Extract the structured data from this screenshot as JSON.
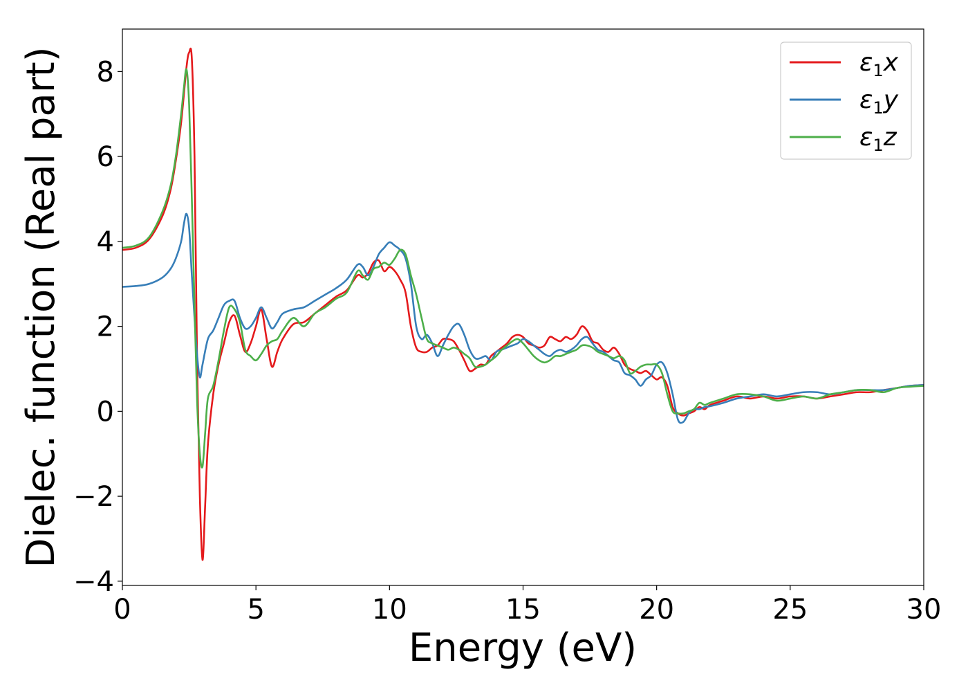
{
  "chart_data": {
    "type": "line",
    "title": "",
    "xlabel": "Energy (eV)",
    "ylabel": "Dielec. function (Real part)",
    "xlim": [
      0,
      30
    ],
    "ylim": [
      -4.1,
      9.0
    ],
    "xticks": [
      0,
      5,
      10,
      15,
      20,
      25,
      30
    ],
    "xtick_labels": [
      "0",
      "5",
      "10",
      "15",
      "20",
      "25",
      "30"
    ],
    "yticks": [
      -4,
      -2,
      0,
      2,
      4,
      6,
      8
    ],
    "ytick_labels": [
      "−4",
      "−2",
      "0",
      "2",
      "4",
      "6",
      "8"
    ],
    "grid": false,
    "legend_position": "top-right",
    "series": [
      {
        "name": "ε1x",
        "legend_base": "ε",
        "legend_sub": "1",
        "legend_var": "x",
        "color": "#e41a1c",
        "x": [
          0.0,
          0.5,
          1.0,
          1.5,
          1.8,
          2.0,
          2.2,
          2.4,
          2.5,
          2.6,
          2.7,
          2.8,
          2.9,
          3.0,
          3.1,
          3.2,
          3.4,
          3.6,
          3.8,
          4.0,
          4.2,
          4.4,
          4.6,
          4.8,
          5.0,
          5.2,
          5.4,
          5.6,
          5.8,
          6.0,
          6.4,
          6.8,
          7.2,
          7.6,
          8.0,
          8.4,
          8.8,
          9.0,
          9.2,
          9.4,
          9.6,
          9.8,
          10.0,
          10.2,
          10.4,
          10.6,
          10.8,
          11.0,
          11.2,
          11.4,
          11.6,
          11.8,
          12.0,
          12.2,
          12.4,
          12.6,
          12.8,
          13.0,
          13.2,
          13.4,
          13.6,
          13.8,
          14.0,
          14.2,
          14.4,
          14.6,
          14.8,
          15.0,
          15.2,
          15.4,
          15.6,
          15.8,
          16.0,
          16.2,
          16.4,
          16.6,
          16.8,
          17.0,
          17.2,
          17.4,
          17.6,
          17.8,
          18.0,
          18.2,
          18.4,
          18.6,
          18.8,
          19.0,
          19.2,
          19.4,
          19.6,
          19.8,
          20.0,
          20.2,
          20.4,
          20.6,
          20.8,
          21.0,
          21.2,
          21.4,
          21.6,
          21.8,
          22.0,
          22.5,
          23.0,
          23.5,
          24.0,
          24.5,
          25.0,
          25.5,
          26.0,
          26.5,
          27.0,
          27.5,
          28.0,
          28.5,
          29.0,
          29.5,
          30.0
        ],
        "y": [
          3.8,
          3.85,
          4.05,
          4.6,
          5.2,
          5.9,
          6.8,
          8.1,
          8.45,
          8.3,
          6.0,
          1.0,
          -2.0,
          -3.5,
          -2.2,
          -0.8,
          0.4,
          1.1,
          1.6,
          2.1,
          2.25,
          1.8,
          1.4,
          1.6,
          2.0,
          2.4,
          1.7,
          1.05,
          1.4,
          1.7,
          2.05,
          2.1,
          2.3,
          2.5,
          2.7,
          2.85,
          3.2,
          3.15,
          3.25,
          3.5,
          3.55,
          3.3,
          3.4,
          3.3,
          3.1,
          2.8,
          2.0,
          1.5,
          1.4,
          1.4,
          1.5,
          1.55,
          1.7,
          1.7,
          1.65,
          1.45,
          1.2,
          0.95,
          1.0,
          1.1,
          1.1,
          1.3,
          1.4,
          1.5,
          1.6,
          1.75,
          1.8,
          1.75,
          1.6,
          1.55,
          1.5,
          1.55,
          1.75,
          1.7,
          1.65,
          1.75,
          1.7,
          1.8,
          2.0,
          1.9,
          1.65,
          1.6,
          1.45,
          1.4,
          1.5,
          1.35,
          1.1,
          1.0,
          0.95,
          0.9,
          0.95,
          0.85,
          0.75,
          0.8,
          0.6,
          0.1,
          -0.05,
          -0.1,
          -0.05,
          0.0,
          0.1,
          0.05,
          0.15,
          0.25,
          0.35,
          0.3,
          0.35,
          0.3,
          0.35,
          0.35,
          0.3,
          0.35,
          0.4,
          0.45,
          0.45,
          0.5,
          0.55,
          0.6,
          0.62
        ]
      },
      {
        "name": "ε1y",
        "legend_base": "ε",
        "legend_sub": "1",
        "legend_var": "y",
        "color": "#377eb8",
        "x": [
          0.0,
          0.5,
          1.0,
          1.5,
          1.8,
          2.0,
          2.2,
          2.3,
          2.4,
          2.5,
          2.6,
          2.7,
          2.8,
          2.9,
          3.0,
          3.2,
          3.4,
          3.6,
          3.8,
          4.0,
          4.2,
          4.4,
          4.6,
          4.8,
          5.0,
          5.2,
          5.4,
          5.6,
          5.8,
          6.0,
          6.4,
          6.8,
          7.2,
          7.6,
          8.0,
          8.4,
          8.8,
          9.0,
          9.2,
          9.4,
          9.6,
          9.8,
          10.0,
          10.2,
          10.4,
          10.6,
          10.8,
          11.0,
          11.2,
          11.4,
          11.6,
          11.8,
          12.0,
          12.2,
          12.4,
          12.6,
          12.8,
          13.0,
          13.2,
          13.4,
          13.6,
          13.8,
          14.0,
          14.2,
          14.4,
          14.6,
          14.8,
          15.0,
          15.2,
          15.4,
          15.6,
          15.8,
          16.0,
          16.2,
          16.4,
          16.6,
          16.8,
          17.0,
          17.2,
          17.4,
          17.6,
          17.8,
          18.0,
          18.2,
          18.4,
          18.6,
          18.8,
          19.0,
          19.2,
          19.4,
          19.6,
          19.8,
          20.0,
          20.2,
          20.4,
          20.6,
          20.8,
          21.0,
          21.2,
          21.4,
          21.6,
          21.8,
          22.0,
          22.5,
          23.0,
          23.5,
          24.0,
          24.5,
          25.0,
          25.5,
          26.0,
          26.5,
          27.0,
          27.5,
          28.0,
          28.5,
          29.0,
          29.5,
          30.0
        ],
        "y": [
          2.93,
          2.95,
          3.0,
          3.15,
          3.35,
          3.6,
          4.0,
          4.4,
          4.65,
          4.3,
          3.2,
          2.2,
          1.3,
          0.8,
          1.1,
          1.7,
          1.9,
          2.2,
          2.5,
          2.6,
          2.6,
          2.2,
          1.95,
          2.0,
          2.2,
          2.45,
          2.2,
          1.95,
          2.1,
          2.3,
          2.4,
          2.45,
          2.6,
          2.75,
          2.9,
          3.1,
          3.45,
          3.4,
          3.2,
          3.4,
          3.7,
          3.85,
          3.98,
          3.9,
          3.8,
          3.6,
          3.0,
          2.0,
          1.7,
          1.8,
          1.6,
          1.3,
          1.55,
          1.8,
          2.0,
          2.05,
          1.8,
          1.45,
          1.25,
          1.25,
          1.3,
          1.2,
          1.4,
          1.45,
          1.5,
          1.55,
          1.6,
          1.7,
          1.65,
          1.55,
          1.45,
          1.35,
          1.3,
          1.4,
          1.45,
          1.4,
          1.45,
          1.55,
          1.7,
          1.75,
          1.6,
          1.45,
          1.4,
          1.3,
          1.2,
          1.15,
          0.9,
          0.85,
          0.75,
          0.6,
          0.75,
          0.85,
          1.1,
          1.15,
          0.9,
          0.4,
          -0.2,
          -0.25,
          -0.05,
          0.05,
          0.05,
          0.1,
          0.12,
          0.2,
          0.3,
          0.35,
          0.4,
          0.35,
          0.4,
          0.45,
          0.45,
          0.4,
          0.45,
          0.5,
          0.5,
          0.5,
          0.55,
          0.6,
          0.62
        ]
      },
      {
        "name": "ε1z",
        "legend_base": "ε",
        "legend_sub": "1",
        "legend_var": "z",
        "color": "#4daf4a",
        "x": [
          0.0,
          0.5,
          1.0,
          1.5,
          1.8,
          2.0,
          2.2,
          2.3,
          2.4,
          2.5,
          2.6,
          2.7,
          2.8,
          2.9,
          3.0,
          3.1,
          3.2,
          3.4,
          3.6,
          3.8,
          4.0,
          4.2,
          4.4,
          4.6,
          4.8,
          5.0,
          5.2,
          5.4,
          5.6,
          5.8,
          6.0,
          6.4,
          6.8,
          7.2,
          7.6,
          8.0,
          8.4,
          8.8,
          9.0,
          9.2,
          9.4,
          9.6,
          9.8,
          10.0,
          10.2,
          10.4,
          10.6,
          10.8,
          11.0,
          11.2,
          11.4,
          11.6,
          11.8,
          12.0,
          12.2,
          12.4,
          12.6,
          12.8,
          13.0,
          13.2,
          13.4,
          13.6,
          13.8,
          14.0,
          14.2,
          14.4,
          14.6,
          14.8,
          15.0,
          15.2,
          15.4,
          15.6,
          15.8,
          16.0,
          16.2,
          16.4,
          16.6,
          16.8,
          17.0,
          17.2,
          17.4,
          17.6,
          17.8,
          18.0,
          18.2,
          18.4,
          18.6,
          18.8,
          19.0,
          19.2,
          19.4,
          19.6,
          19.8,
          20.0,
          20.2,
          20.4,
          20.6,
          20.8,
          21.0,
          21.2,
          21.4,
          21.6,
          21.8,
          22.0,
          22.5,
          23.0,
          23.5,
          24.0,
          24.5,
          25.0,
          25.5,
          26.0,
          26.5,
          27.0,
          27.5,
          28.0,
          28.5,
          29.0,
          29.5,
          30.0
        ],
        "y": [
          3.85,
          3.9,
          4.1,
          4.7,
          5.3,
          6.0,
          7.0,
          7.6,
          8.05,
          7.2,
          5.0,
          2.5,
          0.2,
          -1.0,
          -1.3,
          -0.5,
          0.3,
          0.6,
          1.2,
          1.9,
          2.45,
          2.4,
          2.1,
          1.45,
          1.3,
          1.2,
          1.35,
          1.55,
          1.65,
          1.7,
          1.9,
          2.2,
          2.0,
          2.3,
          2.45,
          2.65,
          2.8,
          3.3,
          3.2,
          3.1,
          3.35,
          3.4,
          3.5,
          3.45,
          3.6,
          3.8,
          3.7,
          3.2,
          2.75,
          2.2,
          1.7,
          1.6,
          1.55,
          1.5,
          1.45,
          1.5,
          1.45,
          1.35,
          1.25,
          1.05,
          1.05,
          1.1,
          1.2,
          1.3,
          1.45,
          1.55,
          1.65,
          1.7,
          1.6,
          1.45,
          1.3,
          1.2,
          1.15,
          1.2,
          1.3,
          1.3,
          1.35,
          1.4,
          1.45,
          1.55,
          1.55,
          1.5,
          1.4,
          1.35,
          1.3,
          1.25,
          1.3,
          1.2,
          0.9,
          0.95,
          1.05,
          1.1,
          1.1,
          1.1,
          0.9,
          0.4,
          0.0,
          -0.05,
          -0.05,
          0.0,
          0.05,
          0.2,
          0.15,
          0.2,
          0.3,
          0.4,
          0.4,
          0.35,
          0.25,
          0.3,
          0.35,
          0.3,
          0.4,
          0.45,
          0.5,
          0.5,
          0.45,
          0.55,
          0.58,
          0.6
        ]
      }
    ]
  }
}
